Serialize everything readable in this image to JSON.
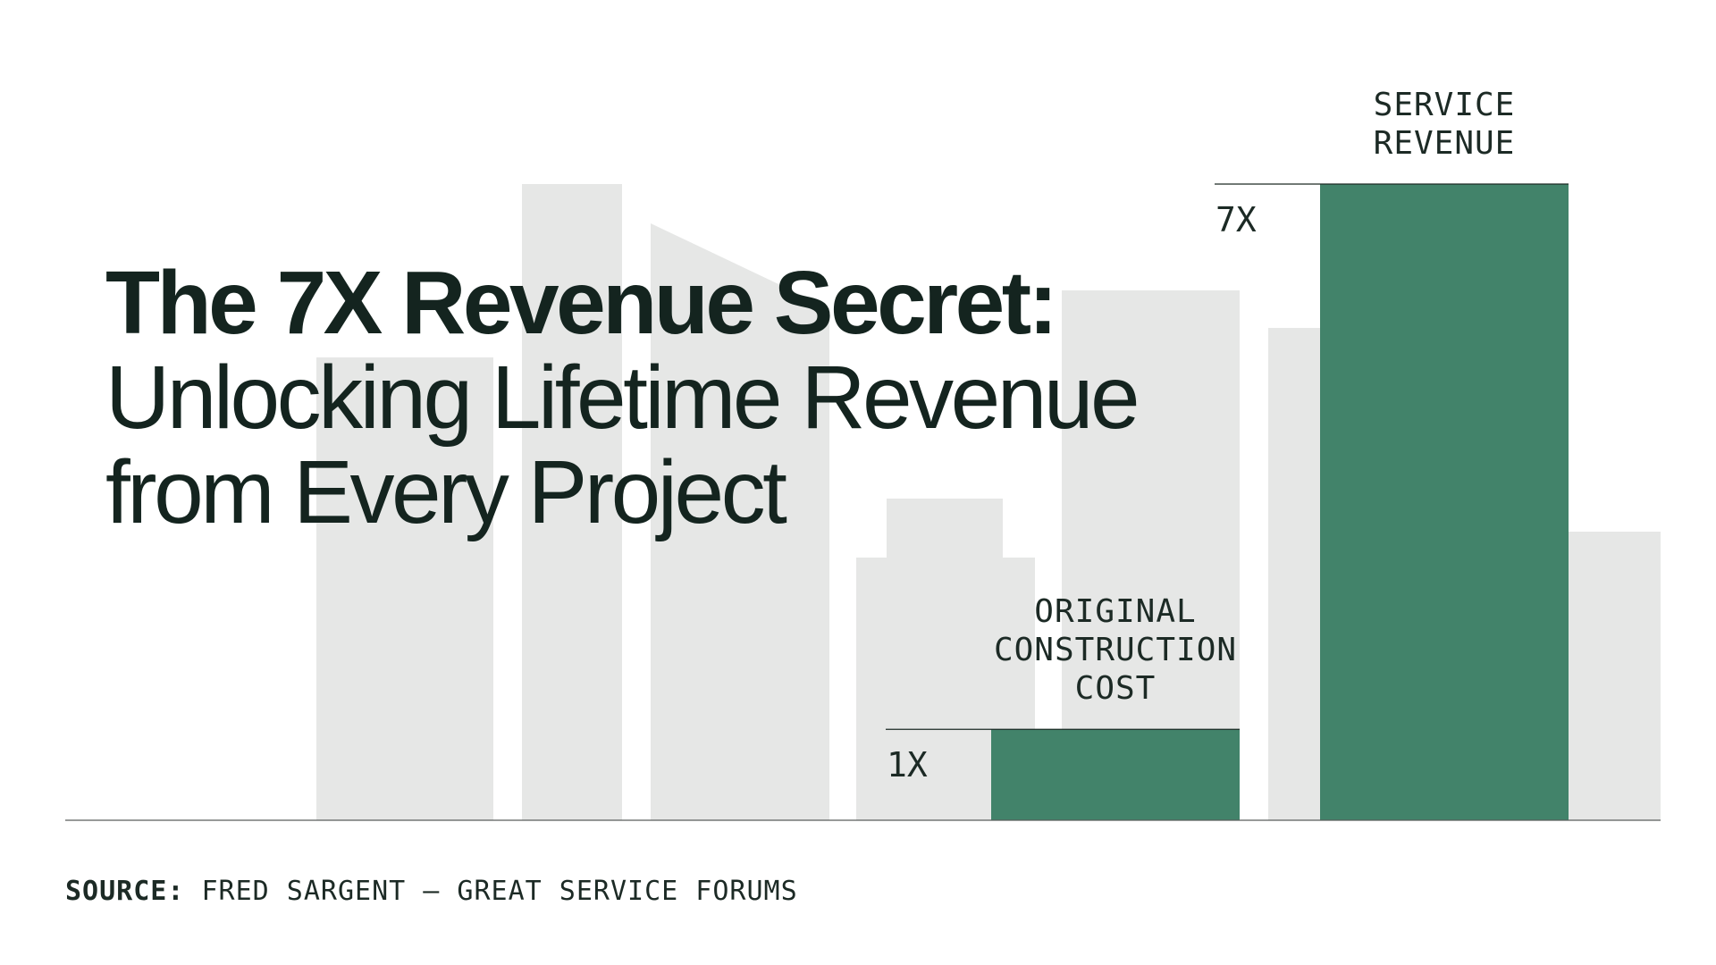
{
  "title": {
    "line1": "The 7X Revenue Secret:",
    "line2": "Unlocking Lifetime Revenue",
    "line3": "from Every Project"
  },
  "chart_data": {
    "type": "bar",
    "categories": [
      [
        "ORIGINAL",
        "CONSTRUCTION",
        "COST"
      ],
      [
        "SERVICE",
        "REVENUE"
      ]
    ],
    "values": [
      1,
      7
    ],
    "value_labels": [
      "1X",
      "7X"
    ],
    "ylim": [
      0,
      7
    ],
    "grid": false,
    "bar_color": "#42836a"
  },
  "source": {
    "label": "SOURCE:",
    "text": "FRED SARGENT — GREAT SERVICE FORUMS"
  },
  "colors": {
    "accent": "#42836a",
    "skyline": "#e6e7e6",
    "text": "#14241f"
  }
}
